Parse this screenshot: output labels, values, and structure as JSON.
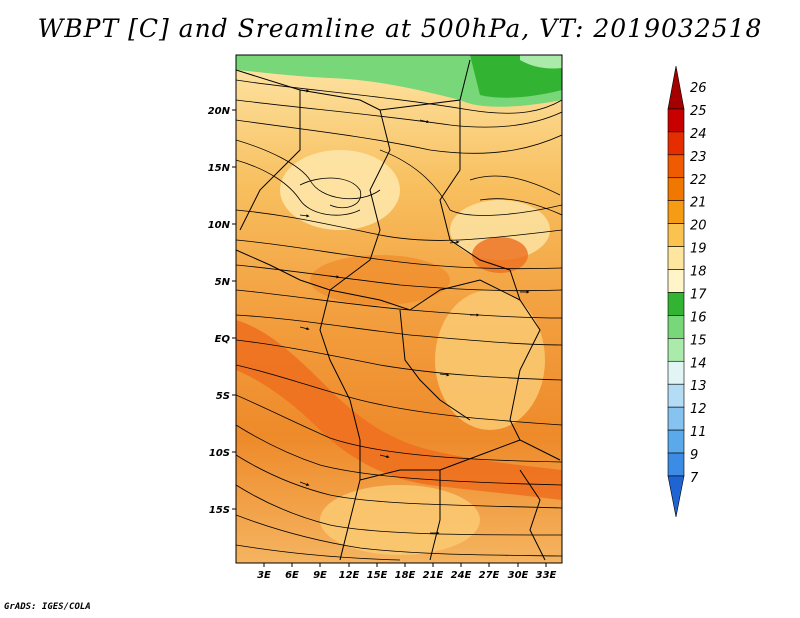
{
  "title": "WBPT [C] and Sreamline at 500hPa, VT: 2019032518",
  "footer": "GrADS: IGES/COLA",
  "map": {
    "lat_labels": [
      "20N",
      "15N",
      "10N",
      "5N",
      "EQ",
      "5S",
      "10S",
      "15S"
    ],
    "lon_labels": [
      "3E",
      "6E",
      "9E",
      "12E",
      "15E",
      "18E",
      "21E",
      "24E",
      "27E",
      "30E",
      "33E"
    ]
  },
  "colorbar": {
    "labels": [
      "26",
      "25",
      "24",
      "23",
      "22",
      "21",
      "20",
      "19",
      "18",
      "17",
      "16",
      "15",
      "14",
      "13",
      "12",
      "11",
      "9",
      "7"
    ],
    "colors": [
      "#a50000",
      "#c80000",
      "#e62d00",
      "#f05a00",
      "#f07800",
      "#f59b14",
      "#fac350",
      "#ffe6a0",
      "#fff5c8",
      "#32b432",
      "#78d778",
      "#aaeaaa",
      "#e1f5f5",
      "#b4dcf5",
      "#87c3f0",
      "#5aaaeb",
      "#3c8ce6",
      "#1e64d2"
    ]
  }
}
